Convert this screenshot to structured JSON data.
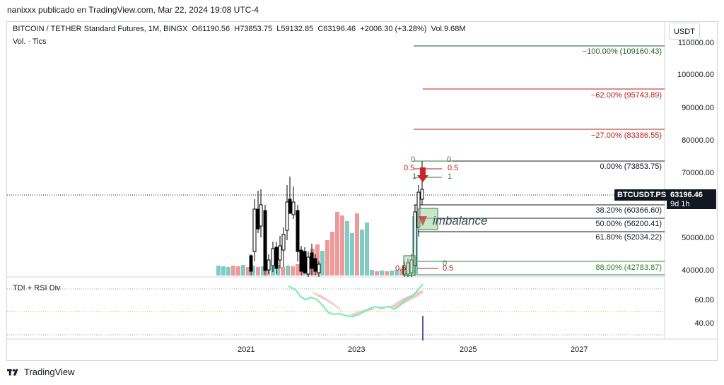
{
  "header": {
    "caption": "nanixxx publicado en TradingView.com, Mar 22, 2024 19:08 UTC-4"
  },
  "legend": {
    "symbol": "BITCOIN / TETHER Standard Futures, 1M, BINGX",
    "open": "O61190.56",
    "high": "H73853.75",
    "low": "L59132.85",
    "close": "C63196.46",
    "change": "+2006.30 (+3.28%)",
    "volume": "Vol.9.68M"
  },
  "volume_label": "Vol. · Tics",
  "indicator_label": "TDI + RSI Div",
  "currency": "USDT",
  "price_axis": [
    "110000.00",
    "100000.00",
    "90000.00",
    "80000.00",
    "70000.00",
    "50000.00",
    "40000.00"
  ],
  "indicator_axis": [
    "60.00",
    "40.00"
  ],
  "time_axis": [
    "2021",
    "2023",
    "2025",
    "2027"
  ],
  "last_price": {
    "symbol": "BTCUSDT.PS",
    "value": "63196.46",
    "countdown": "9d 1h"
  },
  "fib_levels": [
    {
      "label": "−100.00% (109160.43)",
      "color": "#1b5e20"
    },
    {
      "label": "−62.00% (95743.89)",
      "color": "#b71c1c"
    },
    {
      "label": "−27.00% (83386.55)",
      "color": "#b71c1c"
    },
    {
      "label": "0.00% (73853.75)",
      "color": "#131722"
    },
    {
      "label": "38.20% (60366.60)",
      "color": "#131722"
    },
    {
      "label": "50.00% (56200.41)",
      "color": "#131722"
    },
    {
      "label": "61.80% (52034.22)",
      "color": "#131722"
    },
    {
      "label": "88.00% (42783.87)",
      "color": "#2e7d32"
    }
  ],
  "small_fib": {
    "zero_a": "0",
    "zero_b": "0",
    "half_a": "0.5",
    "half_b": "0.5",
    "one_a": "1",
    "one_b": "1",
    "low_zero": "0",
    "low_half_a": "0.5",
    "low_half_b": "0.5"
  },
  "annotation": "imbalance",
  "footer": {
    "brand": "TradingView"
  },
  "colors": {
    "up": "#26a69a",
    "down": "#ef5350",
    "candle": "#000000",
    "fib_green": "#1b5e20",
    "fib_red": "#b71c1c"
  }
}
